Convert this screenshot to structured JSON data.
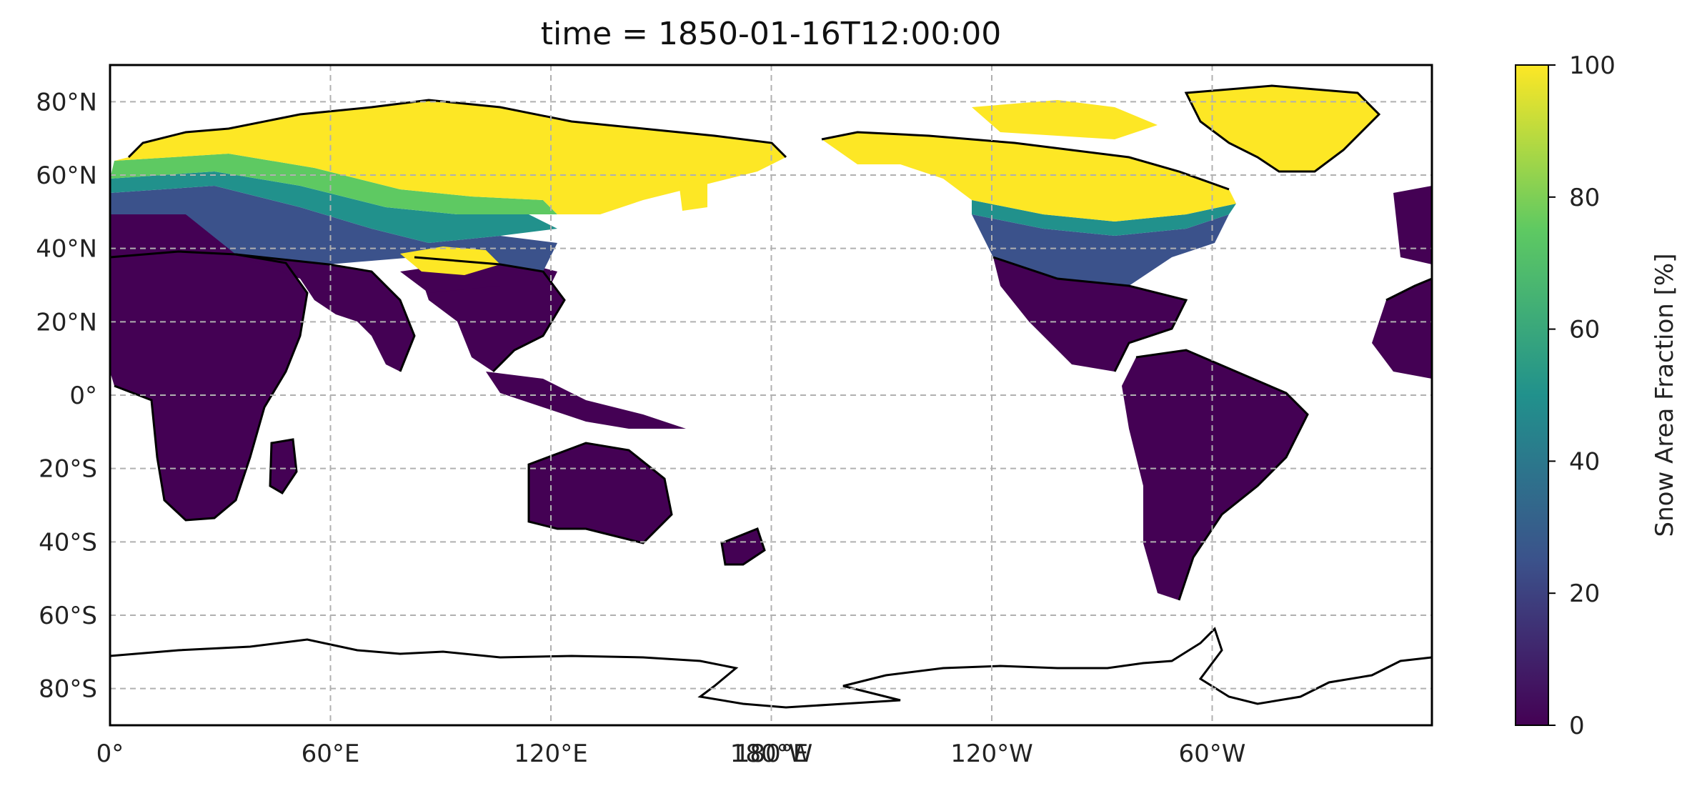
{
  "title": "time = 1850-01-16T12:00:00",
  "colorbar": {
    "label": "Snow Area Fraction [%]",
    "ticks": [
      "0",
      "20",
      "40",
      "60",
      "80",
      "100"
    ],
    "range": [
      0,
      100
    ],
    "colormap": "viridis",
    "colors": [
      "#440154",
      "#3b528b",
      "#21918c",
      "#5ec962",
      "#fde725"
    ]
  },
  "map": {
    "projection": "PlateCarree",
    "central_longitude": 180,
    "lon_ticks": [
      "0°",
      "60°E",
      "120°E",
      "180°E",
      "180°W",
      "120°W",
      "60°W"
    ],
    "lat_ticks": [
      "80°N",
      "60°N",
      "40°N",
      "20°N",
      "0°",
      "20°S",
      "40°S",
      "60°S",
      "80°S"
    ],
    "gridlines": true,
    "coastlines": true
  }
}
